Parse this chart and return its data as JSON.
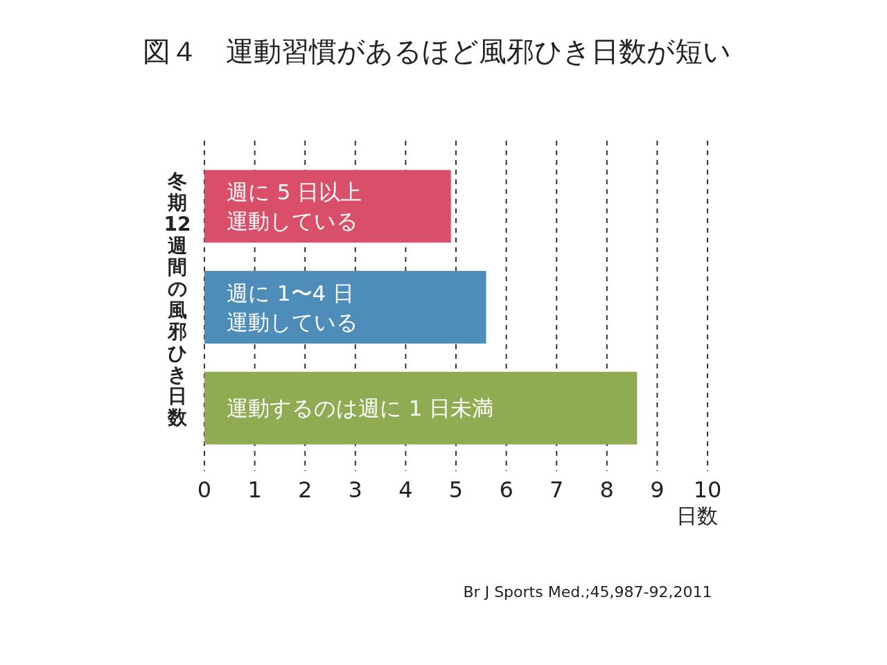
{
  "chart_data": {
    "type": "bar",
    "orientation": "horizontal",
    "title": "図４　運動習慣があるほど風邪ひき日数が短い",
    "categories": [
      "週に 5 日以上運動している",
      "週に 1〜4 日運動している",
      "運動するのは週に 1 日未満"
    ],
    "values": [
      4.9,
      5.6,
      8.6
    ],
    "colors": [
      "#d94f6a",
      "#4e8dba",
      "#8fac52"
    ],
    "xlim": [
      0,
      10
    ],
    "xticks": [
      0,
      1,
      2,
      3,
      4,
      5,
      6,
      7,
      8,
      9,
      10
    ],
    "xlabel": "日数",
    "ylabel": "冬期12週間の風邪ひき日数",
    "grid": "x",
    "annotations": [
      "Br J Sports Med.;45,987-92,2011"
    ]
  }
}
